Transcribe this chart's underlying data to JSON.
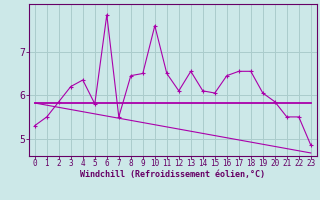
{
  "xlabel": "Windchill (Refroidissement éolien,°C)",
  "background_color": "#cce8e8",
  "grid_color": "#aacccc",
  "line_color": "#aa00aa",
  "axis_color": "#660066",
  "x_values": [
    0,
    1,
    2,
    3,
    4,
    5,
    6,
    7,
    8,
    9,
    10,
    11,
    12,
    13,
    14,
    15,
    16,
    17,
    18,
    19,
    20,
    21,
    22,
    23
  ],
  "line1": [
    5.3,
    5.5,
    5.85,
    6.2,
    6.35,
    5.8,
    7.85,
    5.5,
    6.45,
    6.5,
    7.6,
    6.5,
    6.1,
    6.55,
    6.1,
    6.05,
    6.45,
    6.55,
    6.55,
    6.05,
    5.85,
    5.5,
    5.5,
    4.85
  ],
  "line2": [
    5.82,
    5.82,
    5.82,
    5.82,
    5.82,
    5.82,
    5.82,
    5.82,
    5.82,
    5.82,
    5.82,
    5.82,
    5.82,
    5.82,
    5.82,
    5.82,
    5.82,
    5.82,
    5.82,
    5.82,
    5.82,
    5.82,
    5.82,
    5.82
  ],
  "line3": [
    5.82,
    5.77,
    5.72,
    5.67,
    5.62,
    5.57,
    5.52,
    5.47,
    5.42,
    5.37,
    5.32,
    5.27,
    5.22,
    5.17,
    5.12,
    5.07,
    5.02,
    4.97,
    4.92,
    4.87,
    4.82,
    4.77,
    4.72,
    4.67
  ],
  "ylim": [
    4.6,
    8.1
  ],
  "yticks": [
    5,
    6,
    7
  ],
  "xticks": [
    0,
    1,
    2,
    3,
    4,
    5,
    6,
    7,
    8,
    9,
    10,
    11,
    12,
    13,
    14,
    15,
    16,
    17,
    18,
    19,
    20,
    21,
    22,
    23
  ],
  "tick_fontsize": 5.5,
  "xlabel_fontsize": 6.0,
  "ytick_fontsize": 7.0
}
